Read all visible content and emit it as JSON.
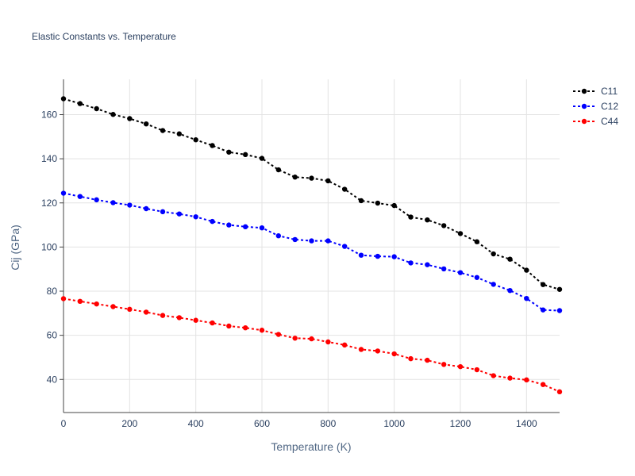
{
  "chart_data": {
    "type": "line",
    "title": "Elastic Constants vs. Temperature",
    "xlabel": "Temperature (K)",
    "ylabel": "Cij (GPa)",
    "xlim": [
      0,
      1500
    ],
    "ylim": [
      25,
      176
    ],
    "x_ticks": [
      0,
      200,
      400,
      600,
      800,
      1000,
      1200,
      1400
    ],
    "y_ticks": [
      40,
      60,
      80,
      100,
      120,
      140,
      160
    ],
    "grid": true,
    "legend_position": "top-right",
    "x": [
      0,
      50,
      100,
      150,
      200,
      250,
      300,
      350,
      400,
      450,
      500,
      550,
      600,
      650,
      700,
      750,
      800,
      850,
      900,
      950,
      1000,
      1050,
      1100,
      1150,
      1200,
      1250,
      1300,
      1350,
      1400,
      1450,
      1500
    ],
    "series": [
      {
        "name": "C11",
        "color": "#000000",
        "values": [
          167.2,
          165.0,
          162.7,
          160.1,
          158.2,
          155.8,
          152.8,
          151.3,
          148.6,
          146.0,
          143.0,
          141.9,
          140.2,
          135.0,
          131.7,
          131.2,
          130.0,
          126.2,
          121.0,
          119.9,
          118.8,
          113.6,
          112.3,
          109.7,
          106.1,
          102.4,
          96.9,
          94.5,
          89.5,
          83.0,
          80.8
        ]
      },
      {
        "name": "C12",
        "color": "#0000ff",
        "values": [
          124.4,
          122.9,
          121.4,
          120.1,
          119.0,
          117.4,
          116.0,
          115.0,
          113.7,
          111.6,
          110.0,
          109.2,
          108.7,
          105.1,
          103.4,
          102.8,
          102.8,
          100.3,
          96.3,
          95.8,
          95.6,
          92.8,
          92.0,
          90.1,
          88.4,
          86.2,
          83.1,
          80.3,
          76.7,
          71.5,
          71.2
        ]
      },
      {
        "name": "C44",
        "color": "#ff0000",
        "values": [
          76.6,
          75.4,
          74.2,
          73.0,
          71.8,
          70.5,
          69.0,
          68.0,
          66.8,
          65.6,
          64.2,
          63.4,
          62.3,
          60.4,
          58.7,
          58.4,
          57.0,
          55.6,
          53.6,
          52.9,
          51.6,
          49.4,
          48.7,
          46.8,
          45.8,
          44.4,
          41.7,
          40.6,
          39.8,
          37.7,
          34.4
        ]
      }
    ]
  }
}
